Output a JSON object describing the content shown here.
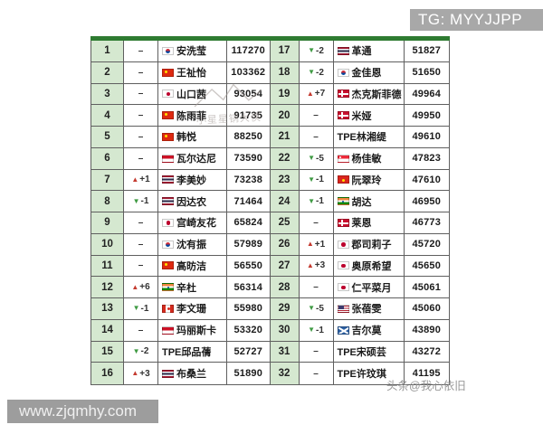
{
  "banner": {
    "label": "TG: MYYJJPP",
    "bg": "#a8a8a8"
  },
  "watermarks": {
    "center_text": "小星星锅大侠",
    "toutiao": "头条@我心依旧",
    "site": "www.zjqmhy.com"
  },
  "colors": {
    "table_top_bar": "#2e7b31",
    "rank_cell_bg": "#d5e8d0",
    "border": "#5f5f5f",
    "up_arrow": "#c43a2f",
    "down_arrow": "#3e9a42"
  },
  "icons": {
    "up": "▲",
    "down": "▼",
    "same": "–"
  },
  "table": {
    "rows_left": [
      {
        "rank": "1",
        "dir": "same",
        "change": "",
        "flag": "kor",
        "name": "安洗莹",
        "points": "117270"
      },
      {
        "rank": "2",
        "dir": "same",
        "change": "",
        "flag": "chn",
        "name": "王祉怡",
        "points": "103362"
      },
      {
        "rank": "3",
        "dir": "same",
        "change": "",
        "flag": "jpn",
        "name": "山口茜",
        "points": "93054"
      },
      {
        "rank": "4",
        "dir": "same",
        "change": "",
        "flag": "chn",
        "name": "陈雨菲",
        "points": "91735"
      },
      {
        "rank": "5",
        "dir": "same",
        "change": "",
        "flag": "chn",
        "name": "韩悦",
        "points": "88250"
      },
      {
        "rank": "6",
        "dir": "same",
        "change": "",
        "flag": "ina",
        "name": "瓦尔达尼",
        "points": "73590"
      },
      {
        "rank": "7",
        "dir": "up",
        "change": "+1",
        "flag": "tha",
        "name": "李美妙",
        "points": "73238"
      },
      {
        "rank": "8",
        "dir": "down",
        "change": "-1",
        "flag": "tha",
        "name": "因达农",
        "points": "71464"
      },
      {
        "rank": "9",
        "dir": "same",
        "change": "",
        "flag": "jpn",
        "name": "宫崎友花",
        "points": "65824"
      },
      {
        "rank": "10",
        "dir": "same",
        "change": "",
        "flag": "kor",
        "name": "沈有振",
        "points": "57989"
      },
      {
        "rank": "11",
        "dir": "same",
        "change": "",
        "flag": "chn",
        "name": "高昉洁",
        "points": "56550"
      },
      {
        "rank": "12",
        "dir": "up",
        "change": "+6",
        "flag": "ind",
        "name": "辛杜",
        "points": "56314"
      },
      {
        "rank": "13",
        "dir": "down",
        "change": "-1",
        "flag": "can",
        "name": "李文珊",
        "points": "55980"
      },
      {
        "rank": "14",
        "dir": "same",
        "change": "",
        "flag": "ina",
        "name": "玛丽斯卡",
        "points": "53320"
      },
      {
        "rank": "15",
        "dir": "down",
        "change": "-2",
        "flag": "none",
        "name": "TPE邱品蒨",
        "points": "52727"
      },
      {
        "rank": "16",
        "dir": "up",
        "change": "+3",
        "flag": "tha",
        "name": "布桑兰",
        "points": "51890"
      }
    ],
    "rows_right": [
      {
        "rank": "17",
        "dir": "down",
        "change": "-2",
        "flag": "tha",
        "name": "革通",
        "points": "51827"
      },
      {
        "rank": "18",
        "dir": "down",
        "change": "-2",
        "flag": "kor",
        "name": "金佳恩",
        "points": "51650"
      },
      {
        "rank": "19",
        "dir": "up",
        "change": "+7",
        "flag": "dnk",
        "name": "杰克斯菲德",
        "points": "49964"
      },
      {
        "rank": "20",
        "dir": "same",
        "change": "",
        "flag": "dnk",
        "name": "米娅",
        "points": "49950"
      },
      {
        "rank": "21",
        "dir": "same",
        "change": "",
        "flag": "none",
        "name": "TPE林湘缇",
        "points": "49610"
      },
      {
        "rank": "22",
        "dir": "down",
        "change": "-5",
        "flag": "sgp",
        "name": "杨佳敏",
        "points": "47823"
      },
      {
        "rank": "23",
        "dir": "down",
        "change": "-1",
        "flag": "vnm",
        "name": "阮翠玲",
        "points": "47610"
      },
      {
        "rank": "24",
        "dir": "down",
        "change": "-1",
        "flag": "ind",
        "name": "胡达",
        "points": "46950"
      },
      {
        "rank": "25",
        "dir": "same",
        "change": "",
        "flag": "dnk",
        "name": "莱恩",
        "points": "46773"
      },
      {
        "rank": "26",
        "dir": "up",
        "change": "+1",
        "flag": "jpn",
        "name": "郡司莉子",
        "points": "45720"
      },
      {
        "rank": "27",
        "dir": "up",
        "change": "+3",
        "flag": "jpn",
        "name": "奥原希望",
        "points": "45650"
      },
      {
        "rank": "28",
        "dir": "same",
        "change": "",
        "flag": "jpn",
        "name": "仁平菜月",
        "points": "45061"
      },
      {
        "rank": "29",
        "dir": "down",
        "change": "-5",
        "flag": "usa",
        "name": "张蓓雯",
        "points": "45060"
      },
      {
        "rank": "30",
        "dir": "down",
        "change": "-1",
        "flag": "sco",
        "name": "吉尔莫",
        "points": "43890"
      },
      {
        "rank": "31",
        "dir": "same",
        "change": "",
        "flag": "none",
        "name": "TPE宋硕芸",
        "points": "43272"
      },
      {
        "rank": "32",
        "dir": "same",
        "change": "",
        "flag": "none",
        "name": "TPE许玟琪",
        "points": "41195"
      }
    ]
  }
}
